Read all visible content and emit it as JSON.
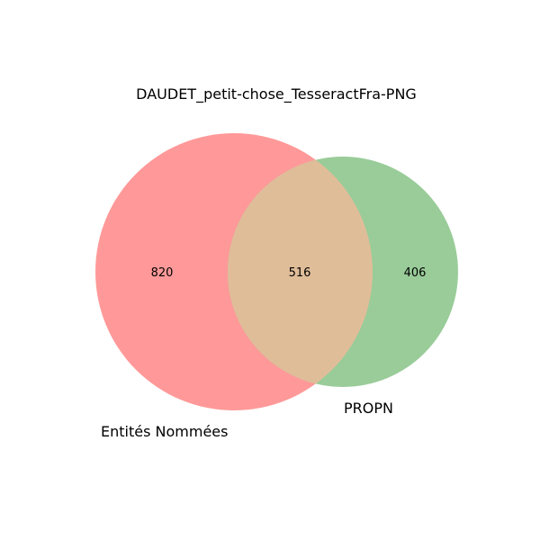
{
  "title": "DAUDET_petit-chose_TesseractFra-PNG",
  "sets": [
    {
      "name": "Entités Nommées",
      "only_count": "820",
      "color": "#ff9999"
    },
    {
      "name": "PROPN",
      "only_count": "406",
      "color": "#99cc99"
    }
  ],
  "intersection": {
    "count": "516",
    "color": "#e0bd99"
  }
}
